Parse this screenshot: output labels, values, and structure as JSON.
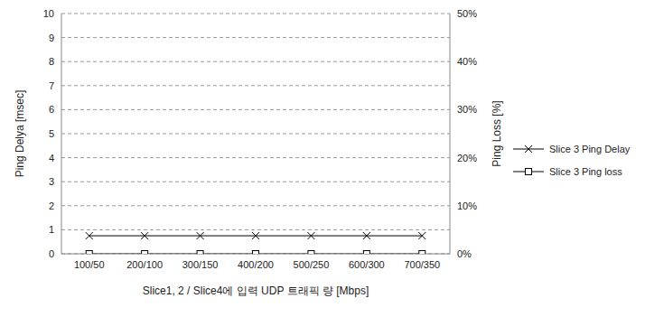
{
  "chart_data": {
    "type": "line",
    "x_label": "Slice1, 2 / Slice4에 입력 UDP 트래픽 량 [Mbps]",
    "y_label": "Ping Delya [msec]",
    "y2_label": "Ping Loss [%]",
    "categories": [
      "100/50",
      "200/100",
      "300/150",
      "400/200",
      "500/250",
      "600/300",
      "700/350"
    ],
    "ylim": [
      0,
      10
    ],
    "yticks": [
      0,
      1,
      2,
      3,
      4,
      5,
      6,
      7,
      8,
      9,
      10
    ],
    "y2lim": [
      0,
      50
    ],
    "y2ticks": [
      {
        "value": 0,
        "label": "0%"
      },
      {
        "value": 10,
        "label": "10%"
      },
      {
        "value": 20,
        "label": "20%"
      },
      {
        "value": 30,
        "label": "30%"
      },
      {
        "value": 40,
        "label": "40%"
      },
      {
        "value": 50,
        "label": "50%"
      }
    ],
    "grid": true,
    "legend": "right",
    "series": [
      {
        "name": "Slice 3 Ping Delay",
        "color": "#000000",
        "marker": "x",
        "values": [
          0.75,
          0.75,
          0.75,
          0.75,
          0.75,
          0.75,
          0.75
        ]
      },
      {
        "name": "Slice 3 Ping loss",
        "color": "#000000",
        "marker": "square",
        "axis": "y2",
        "values": [
          0,
          0,
          0,
          0,
          0,
          0,
          0
        ]
      }
    ]
  }
}
